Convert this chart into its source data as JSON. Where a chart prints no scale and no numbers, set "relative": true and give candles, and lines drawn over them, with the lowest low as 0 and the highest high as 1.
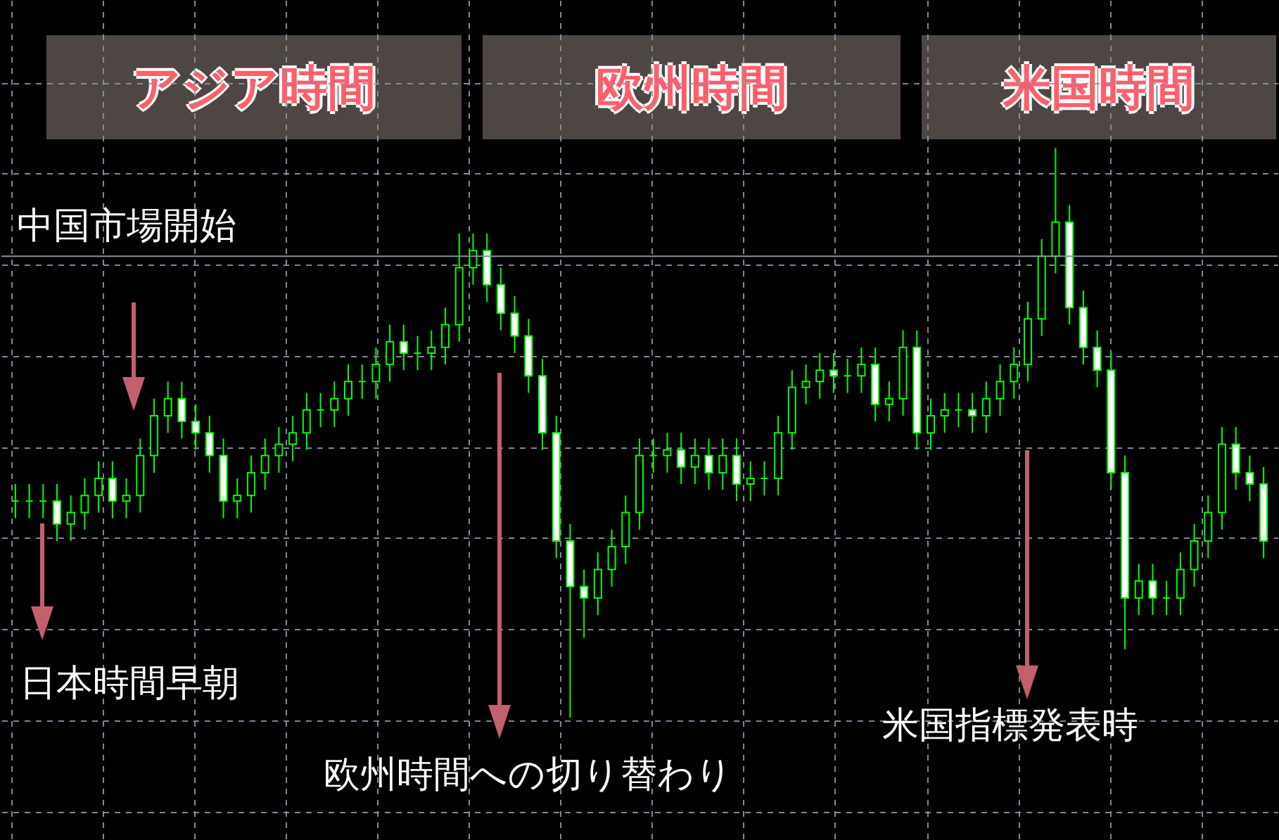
{
  "chart_data": {
    "type": "candlestick",
    "relative": true,
    "grid": true,
    "tick_labels": false,
    "color": "#00ff00",
    "categories": [
      null,
      null,
      null,
      null,
      null,
      null,
      null,
      null,
      null,
      null,
      null,
      null,
      null,
      null,
      null,
      null,
      null,
      null,
      null,
      null,
      null,
      null,
      null,
      null,
      null,
      null,
      null,
      null,
      null,
      null,
      null,
      null,
      null,
      null,
      null,
      null,
      null,
      null,
      null,
      null,
      null,
      null,
      null,
      null,
      null,
      null,
      null,
      null,
      null,
      null,
      null,
      null,
      null,
      null,
      null,
      null,
      null,
      null,
      null,
      null,
      null,
      null,
      null,
      null,
      null,
      null,
      null,
      null,
      null,
      null,
      null,
      null,
      null,
      null,
      null,
      null,
      null,
      null,
      null,
      null,
      null,
      null,
      null,
      null,
      null,
      null,
      null,
      null,
      null,
      null,
      null
    ],
    "ohlc": [
      [
        0.38,
        0.41,
        0.35,
        0.38
      ],
      [
        0.38,
        0.41,
        0.35,
        0.38
      ],
      [
        0.38,
        0.41,
        0.35,
        0.38
      ],
      [
        0.38,
        0.41,
        0.31,
        0.34
      ],
      [
        0.34,
        0.39,
        0.31,
        0.36
      ],
      [
        0.36,
        0.42,
        0.33,
        0.39
      ],
      [
        0.39,
        0.45,
        0.36,
        0.42
      ],
      [
        0.42,
        0.45,
        0.35,
        0.38
      ],
      [
        0.38,
        0.42,
        0.35,
        0.39
      ],
      [
        0.39,
        0.49,
        0.36,
        0.46
      ],
      [
        0.46,
        0.56,
        0.43,
        0.53
      ],
      [
        0.53,
        0.59,
        0.5,
        0.56
      ],
      [
        0.56,
        0.59,
        0.49,
        0.52
      ],
      [
        0.52,
        0.55,
        0.47,
        0.5
      ],
      [
        0.5,
        0.53,
        0.43,
        0.46
      ],
      [
        0.46,
        0.49,
        0.35,
        0.38
      ],
      [
        0.38,
        0.42,
        0.35,
        0.39
      ],
      [
        0.39,
        0.46,
        0.36,
        0.43
      ],
      [
        0.43,
        0.49,
        0.4,
        0.46
      ],
      [
        0.46,
        0.51,
        0.43,
        0.48
      ],
      [
        0.48,
        0.53,
        0.45,
        0.5
      ],
      [
        0.5,
        0.57,
        0.47,
        0.54
      ],
      [
        0.54,
        0.57,
        0.51,
        0.54
      ],
      [
        0.54,
        0.59,
        0.51,
        0.56
      ],
      [
        0.56,
        0.62,
        0.53,
        0.59
      ],
      [
        0.59,
        0.62,
        0.56,
        0.59
      ],
      [
        0.59,
        0.65,
        0.56,
        0.62
      ],
      [
        0.62,
        0.69,
        0.59,
        0.66
      ],
      [
        0.66,
        0.69,
        0.61,
        0.64
      ],
      [
        0.64,
        0.67,
        0.61,
        0.64
      ],
      [
        0.64,
        0.68,
        0.61,
        0.65
      ],
      [
        0.65,
        0.72,
        0.62,
        0.69
      ],
      [
        0.69,
        0.85,
        0.66,
        0.79
      ],
      [
        0.79,
        0.85,
        0.76,
        0.82
      ],
      [
        0.82,
        0.85,
        0.73,
        0.76
      ],
      [
        0.76,
        0.79,
        0.68,
        0.71
      ],
      [
        0.71,
        0.74,
        0.64,
        0.67
      ],
      [
        0.67,
        0.7,
        0.57,
        0.6
      ],
      [
        0.6,
        0.63,
        0.47,
        0.5
      ],
      [
        0.5,
        0.53,
        0.28,
        0.31
      ],
      [
        0.31,
        0.34,
        0,
        0.23
      ],
      [
        0.23,
        0.26,
        0.14,
        0.21
      ],
      [
        0.21,
        0.29,
        0.18,
        0.26
      ],
      [
        0.26,
        0.33,
        0.23,
        0.3
      ],
      [
        0.3,
        0.39,
        0.27,
        0.36
      ],
      [
        0.36,
        0.49,
        0.33,
        0.46
      ],
      [
        0.46,
        0.49,
        0.43,
        0.46
      ],
      [
        0.46,
        0.5,
        0.43,
        0.47
      ],
      [
        0.47,
        0.5,
        0.41,
        0.44
      ],
      [
        0.44,
        0.49,
        0.41,
        0.46
      ],
      [
        0.46,
        0.49,
        0.4,
        0.43
      ],
      [
        0.43,
        0.49,
        0.4,
        0.46
      ],
      [
        0.46,
        0.49,
        0.38,
        0.41
      ],
      [
        0.41,
        0.45,
        0.38,
        0.42
      ],
      [
        0.42,
        0.45,
        0.39,
        0.42
      ],
      [
        0.42,
        0.53,
        0.39,
        0.5
      ],
      [
        0.5,
        0.61,
        0.47,
        0.58
      ],
      [
        0.58,
        0.62,
        0.55,
        0.59
      ],
      [
        0.59,
        0.64,
        0.56,
        0.61
      ],
      [
        0.61,
        0.64,
        0.57,
        0.6
      ],
      [
        0.6,
        0.63,
        0.57,
        0.6
      ],
      [
        0.6,
        0.65,
        0.57,
        0.62
      ],
      [
        0.62,
        0.65,
        0.52,
        0.55
      ],
      [
        0.55,
        0.59,
        0.52,
        0.56
      ],
      [
        0.56,
        0.68,
        0.53,
        0.65
      ],
      [
        0.65,
        0.68,
        0.47,
        0.5
      ],
      [
        0.5,
        0.56,
        0.47,
        0.53
      ],
      [
        0.53,
        0.57,
        0.5,
        0.54
      ],
      [
        0.54,
        0.57,
        0.51,
        0.54
      ],
      [
        0.54,
        0.57,
        0.5,
        0.53
      ],
      [
        0.53,
        0.59,
        0.5,
        0.56
      ],
      [
        0.56,
        0.62,
        0.53,
        0.59
      ],
      [
        0.59,
        0.65,
        0.56,
        0.62
      ],
      [
        0.62,
        0.73,
        0.59,
        0.7
      ],
      [
        0.7,
        0.84,
        0.67,
        0.81
      ],
      [
        0.81,
        1,
        0.78,
        0.87
      ],
      [
        0.87,
        0.9,
        0.69,
        0.72
      ],
      [
        0.72,
        0.75,
        0.62,
        0.65
      ],
      [
        0.65,
        0.68,
        0.58,
        0.61
      ],
      [
        0.61,
        0.64,
        0.4,
        0.43
      ],
      [
        0.43,
        0.46,
        0.12,
        0.21
      ],
      [
        0.21,
        0.27,
        0.18,
        0.24
      ],
      [
        0.24,
        0.27,
        0.18,
        0.21
      ],
      [
        0.21,
        0.24,
        0.18,
        0.21
      ],
      [
        0.21,
        0.29,
        0.18,
        0.26
      ],
      [
        0.26,
        0.34,
        0.23,
        0.31
      ],
      [
        0.31,
        0.39,
        0.28,
        0.36
      ],
      [
        0.36,
        0.51,
        0.33,
        0.48
      ],
      [
        0.48,
        0.51,
        0.4,
        0.43
      ],
      [
        0.43,
        0.46,
        0.38,
        0.41
      ],
      [
        0.41,
        0.44,
        0.28,
        0.31
      ]
    ],
    "ref_lines": [
      {
        "axis": "y",
        "value": 0.81,
        "color": "#8a8f98"
      }
    ],
    "annotations": [
      "アジア時間",
      "欧州時間",
      "米国時間",
      "中国市場開始",
      "日本時間早朝",
      "欧州時間への切り替わり",
      "米国指標発表時"
    ]
  }
}
